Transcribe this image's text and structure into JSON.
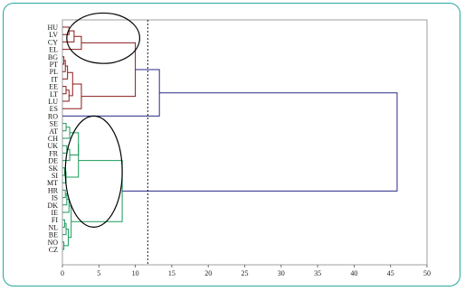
{
  "chart_data": {
    "type": "dendrogram",
    "orientation": "horizontal",
    "categories": [
      "HU",
      "LV",
      "CY",
      "EL",
      "BG",
      "PT",
      "PL",
      "IT",
      "EE",
      "LT",
      "LU",
      "ES",
      "RO",
      "SE",
      "AT",
      "CH",
      "UK",
      "FR",
      "DE",
      "SK",
      "SI",
      "MT",
      "HR",
      "IS",
      "DK",
      "IE",
      "FI",
      "NL",
      "BE",
      "NO",
      "CZ"
    ],
    "xlim": [
      0,
      50
    ],
    "xticks": [
      0,
      5,
      10,
      15,
      20,
      25,
      30,
      35,
      40,
      45,
      50
    ],
    "cut_line_x": 11.7,
    "colors": {
      "red_cluster": "#8b1a1a",
      "green_cluster": "#1a9a5a",
      "root": "#2a2a8a",
      "frame": "#2aa6a0"
    },
    "links": [
      {
        "a": {
          "leaf": 0
        },
        "b": {
          "leaf": 1
        },
        "h": 0.9,
        "id": "r1",
        "color": "red_cluster"
      },
      {
        "a": {
          "node": "r1"
        },
        "b": {
          "leaf": 2
        },
        "h": 1.6,
        "id": "r2",
        "color": "red_cluster"
      },
      {
        "a": {
          "node": "r2"
        },
        "b": {
          "leaf": 3
        },
        "h": 2.6,
        "id": "r3",
        "color": "red_cluster"
      },
      {
        "a": {
          "leaf": 4
        },
        "b": {
          "leaf": 5
        },
        "h": 0.2,
        "id": "r4",
        "color": "red_cluster"
      },
      {
        "a": {
          "node": "r4"
        },
        "b": {
          "leaf": 6
        },
        "h": 0.4,
        "id": "r5",
        "color": "red_cluster"
      },
      {
        "a": {
          "node": "r5"
        },
        "b": {
          "leaf": 7
        },
        "h": 0.7,
        "id": "r6",
        "color": "red_cluster"
      },
      {
        "a": {
          "leaf": 8
        },
        "b": {
          "leaf": 9
        },
        "h": 0.5,
        "id": "r7",
        "color": "red_cluster"
      },
      {
        "a": {
          "node": "r7"
        },
        "b": {
          "leaf": 10
        },
        "h": 0.9,
        "id": "r8",
        "color": "red_cluster"
      },
      {
        "a": {
          "node": "r6"
        },
        "b": {
          "node": "r8"
        },
        "h": 1.4,
        "id": "r9",
        "color": "red_cluster"
      },
      {
        "a": {
          "node": "r9"
        },
        "b": {
          "leaf": 11
        },
        "h": 2.6,
        "id": "r10",
        "color": "red_cluster"
      },
      {
        "a": {
          "node": "r3"
        },
        "b": {
          "node": "r10"
        },
        "h": 10.0,
        "id": "r11",
        "color": "red_cluster"
      },
      {
        "a": {
          "node": "r11"
        },
        "b": {
          "leaf": 12
        },
        "h": 13.3,
        "id": "r12",
        "color": "root"
      },
      {
        "a": {
          "leaf": 13
        },
        "b": {
          "leaf": 14
        },
        "h": 0.5,
        "id": "g1",
        "color": "green_cluster"
      },
      {
        "a": {
          "node": "g1"
        },
        "b": {
          "leaf": 15
        },
        "h": 1.0,
        "id": "g2",
        "color": "green_cluster"
      },
      {
        "a": {
          "leaf": 16
        },
        "b": {
          "leaf": 17
        },
        "h": 0.6,
        "id": "g3",
        "color": "green_cluster"
      },
      {
        "a": {
          "node": "g3"
        },
        "b": {
          "leaf": 18
        },
        "h": 1.0,
        "id": "g4",
        "color": "green_cluster"
      },
      {
        "a": {
          "node": "g2"
        },
        "b": {
          "node": "g4"
        },
        "h": 2.2,
        "id": "g5",
        "color": "green_cluster"
      },
      {
        "a": {
          "leaf": 19
        },
        "b": {
          "leaf": 20
        },
        "h": 0.3,
        "id": "g6",
        "color": "green_cluster"
      },
      {
        "a": {
          "node": "g6"
        },
        "b": {
          "leaf": 21
        },
        "h": 0.5,
        "id": "g7",
        "color": "green_cluster"
      },
      {
        "a": {
          "node": "g5"
        },
        "b": {
          "node": "g7"
        },
        "h": 2.2,
        "id": "g8",
        "color": "green_cluster"
      },
      {
        "a": {
          "leaf": 22
        },
        "b": {
          "leaf": 23
        },
        "h": 0.4,
        "id": "g9",
        "color": "green_cluster"
      },
      {
        "a": {
          "node": "g9"
        },
        "b": {
          "leaf": 24
        },
        "h": 0.6,
        "id": "g10",
        "color": "green_cluster"
      },
      {
        "a": {
          "node": "g10"
        },
        "b": {
          "leaf": 25
        },
        "h": 0.9,
        "id": "g11",
        "color": "green_cluster"
      },
      {
        "a": {
          "leaf": 26
        },
        "b": {
          "leaf": 27
        },
        "h": 0.3,
        "id": "g12",
        "color": "green_cluster"
      },
      {
        "a": {
          "node": "g12"
        },
        "b": {
          "leaf": 28
        },
        "h": 0.5,
        "id": "g13",
        "color": "green_cluster"
      },
      {
        "a": {
          "leaf": 29
        },
        "b": {
          "leaf": 30
        },
        "h": 0.2,
        "id": "g14",
        "color": "green_cluster"
      },
      {
        "a": {
          "node": "g13"
        },
        "b": {
          "node": "g14"
        },
        "h": 0.8,
        "id": "g15",
        "color": "green_cluster"
      },
      {
        "a": {
          "node": "g11"
        },
        "b": {
          "node": "g15"
        },
        "h": 1.2,
        "id": "g16",
        "color": "green_cluster"
      },
      {
        "a": {
          "node": "g8"
        },
        "b": {
          "node": "g16"
        },
        "h": 8.2,
        "id": "g17",
        "color": "green_cluster"
      },
      {
        "a": {
          "node": "r12"
        },
        "b": {
          "node": "g17"
        },
        "h": 45.9,
        "id": "root",
        "color": "root"
      }
    ],
    "ellipses": [
      {
        "center_x": 5.6,
        "center_label_span": [
          "HU",
          "EL"
        ],
        "rx_units": 5.0,
        "ry_labels": 3.4
      },
      {
        "center_x": 4.3,
        "center_label_span": [
          "SK",
          "SI"
        ],
        "rx_units": 3.9,
        "ry_labels": 7.5
      }
    ]
  }
}
